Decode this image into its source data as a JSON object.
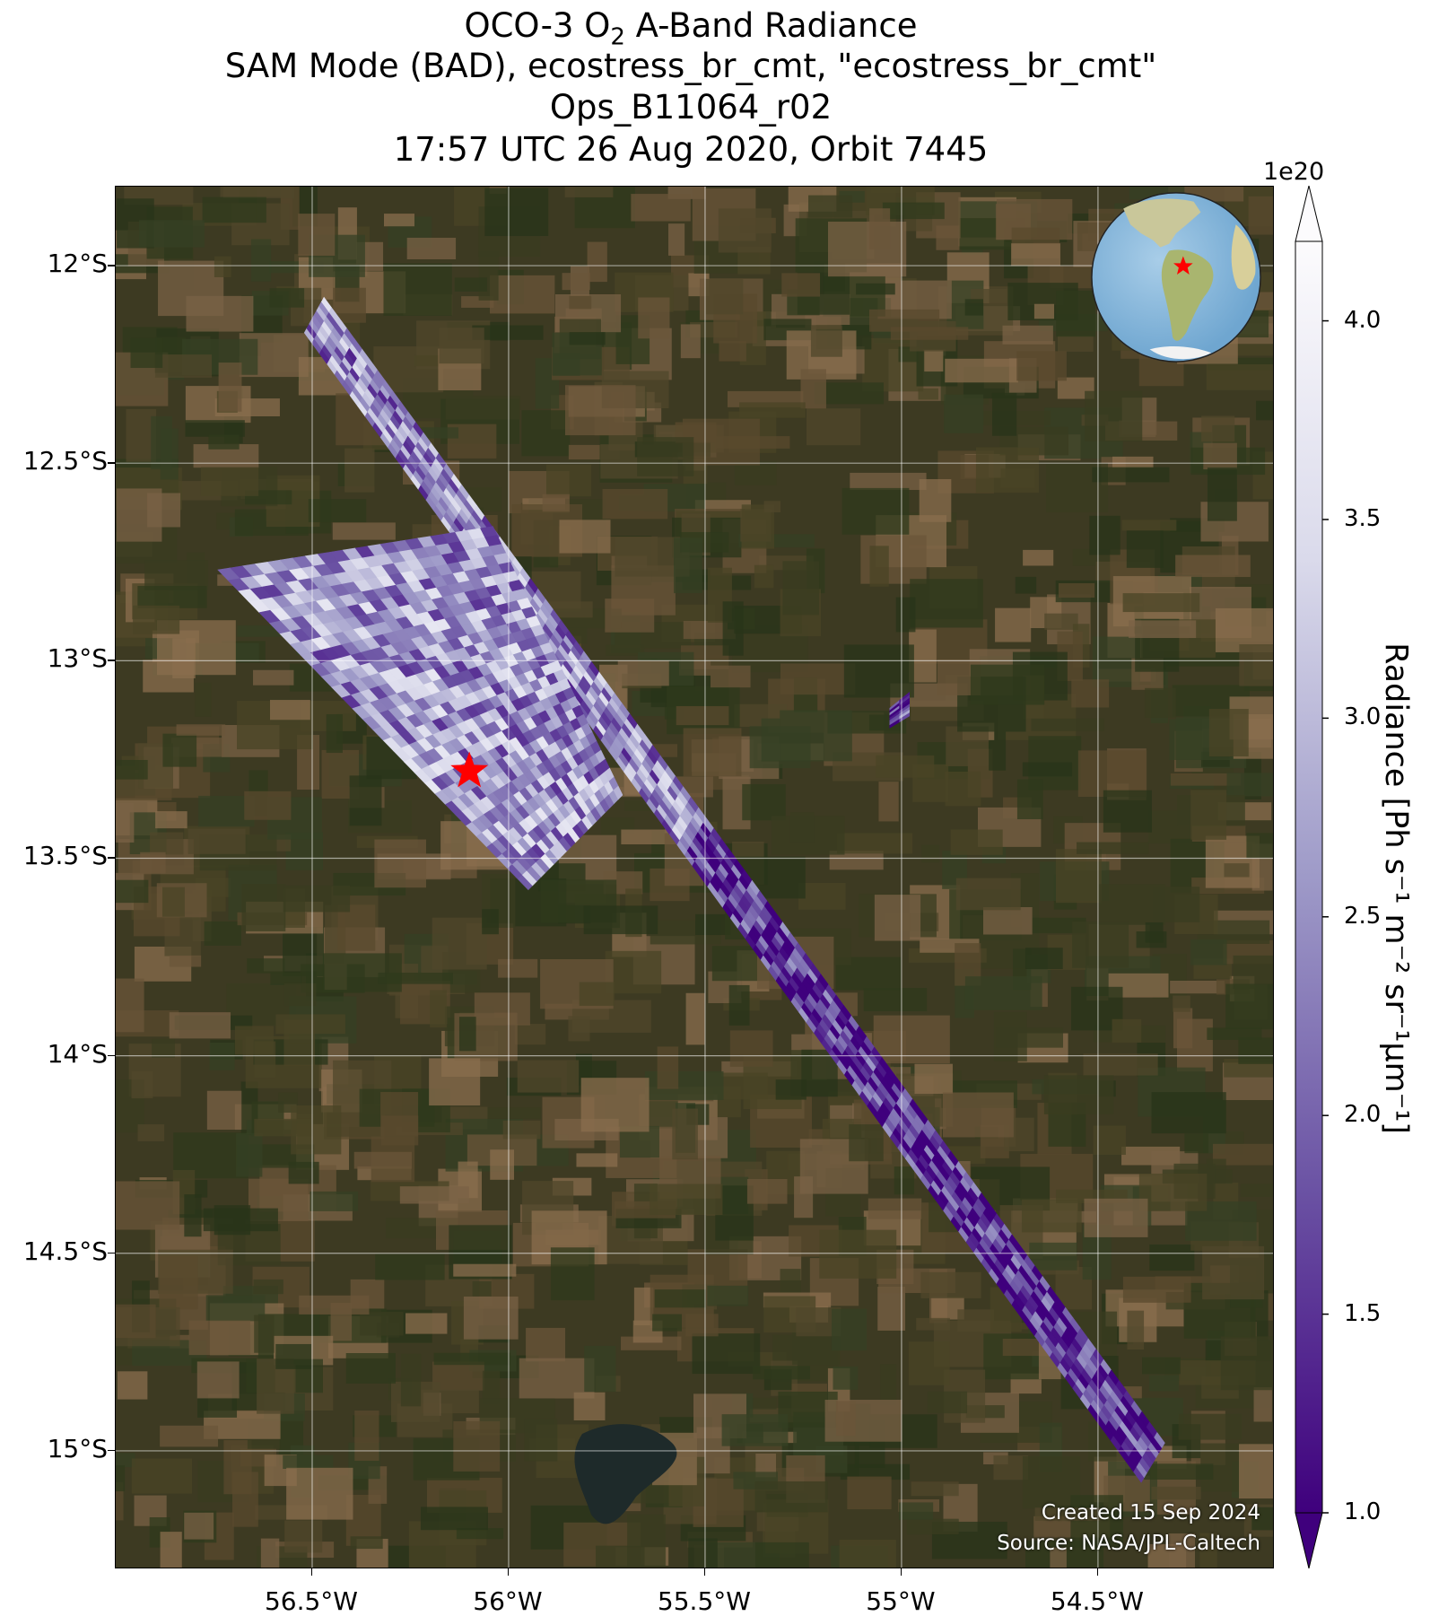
{
  "title": {
    "line1_prefix": "OCO-3 O",
    "line1_sub": "2",
    "line1_suffix": " A-Band Radiance",
    "line2": "SAM Mode (BAD), ecostress_br_cmt, \"ecostress_br_cmt\"",
    "line3": "Ops_B11064_r02",
    "line4": "17:57 UTC 26 Aug 2020, Orbit 7445"
  },
  "map": {
    "lat_ticks": [
      "12°S",
      "12.5°S",
      "13°S",
      "13.5°S",
      "14°S",
      "14.5°S",
      "15°S"
    ],
    "lon_ticks": [
      "56.5°W",
      "56°W",
      "55.5°W",
      "55°W",
      "54.5°W"
    ],
    "lat_values": [
      -12.0,
      -12.5,
      -13.0,
      -13.5,
      -14.0,
      -14.5,
      -15.0
    ],
    "lon_values": [
      -56.5,
      -56.0,
      -55.5,
      -55.0,
      -54.5
    ],
    "lat_range": [
      -15.3,
      -11.8
    ],
    "lon_range": [
      -57.0,
      -54.05
    ],
    "target_marker": {
      "lon": -56.1,
      "lat": -13.28,
      "color": "#ff0000",
      "shape": "star"
    },
    "background": "satellite imagery (Brazil, Mato Grosso)",
    "colormap": "Purples_r",
    "swaths": [
      {
        "name": "glint-track",
        "corners": [
          [
            -56.52,
            -12.17
          ],
          [
            -56.47,
            -12.08
          ],
          [
            -54.33,
            -14.98
          ],
          [
            -54.39,
            -15.08
          ]
        ]
      },
      {
        "name": "sam-target",
        "corners": [
          [
            -56.74,
            -12.77
          ],
          [
            -56.04,
            -12.66
          ],
          [
            -55.71,
            -13.34
          ],
          [
            -55.95,
            -13.58
          ]
        ]
      },
      {
        "name": "small-segment",
        "corners": [
          [
            -55.03,
            -13.12
          ],
          [
            -54.98,
            -13.08
          ],
          [
            -54.98,
            -13.14
          ],
          [
            -55.03,
            -13.17
          ]
        ]
      }
    ]
  },
  "colorbar": {
    "label": "Radiance [Ph s⁻¹ m⁻² sr⁻¹μm⁻¹]",
    "exponent": "1e20",
    "ticks": [
      "1.0",
      "1.5",
      "2.0",
      "2.5",
      "3.0",
      "3.5",
      "4.0"
    ],
    "tick_values": [
      1.0,
      1.5,
      2.0,
      2.5,
      3.0,
      3.5,
      4.0
    ],
    "range": [
      1.0,
      4.2
    ],
    "extend": "both",
    "colors": {
      "low": "#3f007d",
      "mid": "#6a51a3",
      "midhigh": "#9e9ac8",
      "high": "#dadaeb",
      "top": "#fcfbfd"
    }
  },
  "inset": {
    "name": "globe-locator",
    "marker_color": "#ff0000"
  },
  "credits": {
    "created": "Created 15 Sep 2024",
    "source": "Source: NASA/JPL-Caltech"
  }
}
